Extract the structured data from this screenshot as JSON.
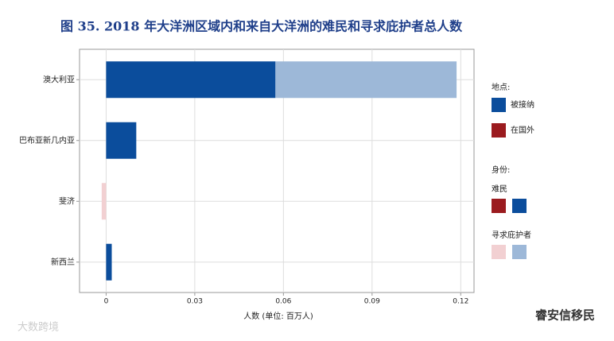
{
  "chart_data": {
    "type": "stacked_hbar",
    "title": "图 35. 2018 年大洋洲区域内和来自大洋洲的难民和寻求庇护者总人数",
    "x_label": "人数 (单位: 百万人)",
    "categories": [
      "澳大利亚",
      "巴布亚新几内亚",
      "斐济",
      "新西兰"
    ],
    "series": [
      {
        "color": "#0b4d9c",
        "values": [
          0.0573,
          0.0102,
          null,
          0.0019
        ]
      },
      {
        "color": "#9db8d8",
        "values": [
          0.0613,
          null,
          null,
          null
        ]
      },
      {
        "color": "#f2d0d2",
        "values": [
          null,
          null,
          -0.0015,
          null
        ]
      }
    ],
    "xlim": [
      -0.009,
      0.1245
    ],
    "xticks": [
      0,
      0.03,
      0.06,
      0.09,
      0.12
    ],
    "grid": true,
    "legend": {
      "location_title": "地点:",
      "location_items": [
        {
          "label": "被接纳",
          "color": "#0b4d9c"
        },
        {
          "label": "在国外",
          "color": "#9b1b1f"
        }
      ],
      "status_title": "身份:",
      "status_items": [
        {
          "label": "难民",
          "colors": [
            "#9b1b1f",
            "#0b4d9c"
          ]
        },
        {
          "label": "寻求庇护者",
          "colors": [
            "#f2d0d2",
            "#9db8d8"
          ]
        }
      ]
    },
    "watermarks": [
      "睿安信移民",
      "大数跨境"
    ]
  }
}
